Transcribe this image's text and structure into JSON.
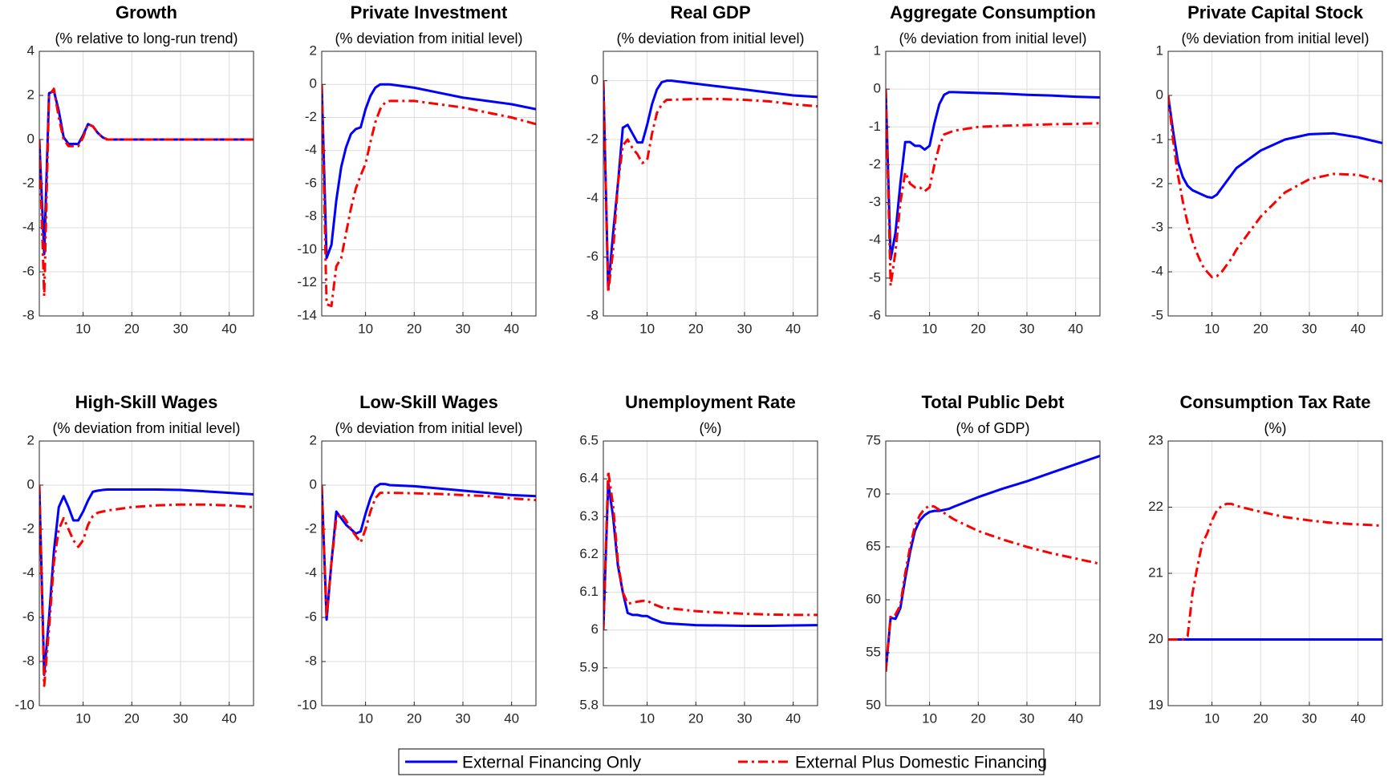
{
  "chart_data": [
    {
      "type": "line",
      "title": "Growth",
      "subtitle": "(% relative to long-run trend)",
      "x": [
        1,
        2,
        3,
        4,
        5,
        6,
        7,
        8,
        9,
        10,
        11,
        12,
        13,
        14,
        15,
        20,
        25,
        30,
        35,
        40,
        45
      ],
      "xlim": [
        1,
        45
      ],
      "xticks": [
        10,
        20,
        30,
        40
      ],
      "ylim": [
        -8,
        4
      ],
      "yticks": [
        -8,
        -6,
        -4,
        -2,
        0,
        2,
        4
      ],
      "grid": true,
      "series": [
        {
          "name": "External Financing Only",
          "color": "#0000ff",
          "linestyle": "solid",
          "values": [
            0,
            -5.2,
            2.1,
            2.2,
            1.3,
            0.1,
            -0.2,
            -0.2,
            -0.2,
            0.2,
            0.7,
            0.6,
            0.3,
            0.1,
            0,
            0,
            0,
            0,
            0,
            0,
            0
          ]
        },
        {
          "name": "External Plus Domestic Financing",
          "color": "#ff0000",
          "linestyle": "dashdot",
          "values": [
            0,
            -7.1,
            2.0,
            2.3,
            1.0,
            0,
            -0.3,
            -0.3,
            -0.3,
            0.1,
            0.7,
            0.6,
            0.3,
            0.1,
            0,
            0,
            0,
            0,
            0,
            0,
            0
          ]
        }
      ]
    },
    {
      "type": "line",
      "title": "Private Investment",
      "subtitle": "(% deviation from initial level)",
      "x": [
        1,
        2,
        3,
        4,
        5,
        6,
        7,
        8,
        9,
        10,
        11,
        12,
        13,
        14,
        15,
        20,
        25,
        30,
        35,
        40,
        45
      ],
      "xlim": [
        1,
        45
      ],
      "xticks": [
        10,
        20,
        30,
        40
      ],
      "ylim": [
        -14,
        2
      ],
      "yticks": [
        -14,
        -12,
        -10,
        -8,
        -6,
        -4,
        -2,
        0,
        2
      ],
      "grid": true,
      "series": [
        {
          "name": "External Financing Only",
          "color": "#0000ff",
          "linestyle": "solid",
          "values": [
            0,
            -10.5,
            -9.7,
            -7,
            -5,
            -3.8,
            -3.0,
            -2.7,
            -2.6,
            -1.5,
            -0.7,
            -0.2,
            0,
            0,
            0,
            -0.2,
            -0.5,
            -0.8,
            -1.0,
            -1.2,
            -1.5
          ]
        },
        {
          "name": "External Plus Domestic Financing",
          "color": "#ff0000",
          "linestyle": "dashdot",
          "values": [
            0,
            -13.3,
            -13.4,
            -11,
            -10.5,
            -9,
            -7.5,
            -6.3,
            -5.5,
            -4.8,
            -3.5,
            -2.3,
            -1.5,
            -1.1,
            -1.0,
            -1.0,
            -1.2,
            -1.4,
            -1.7,
            -2.0,
            -2.4
          ]
        }
      ]
    },
    {
      "type": "line",
      "title": "Real GDP",
      "subtitle": "(% deviation from initial level)",
      "x": [
        1,
        2,
        3,
        4,
        5,
        6,
        7,
        8,
        9,
        10,
        11,
        12,
        13,
        14,
        15,
        20,
        25,
        30,
        35,
        40,
        45
      ],
      "xlim": [
        1,
        45
      ],
      "xticks": [
        10,
        20,
        30,
        40
      ],
      "ylim": [
        -8,
        1
      ],
      "yticks": [
        -8,
        -6,
        -4,
        -2,
        0
      ],
      "grid": true,
      "series": [
        {
          "name": "External Financing Only",
          "color": "#0000ff",
          "linestyle": "solid",
          "values": [
            0,
            -7.1,
            -5.2,
            -3.5,
            -1.6,
            -1.5,
            -1.8,
            -2.1,
            -2.1,
            -1.5,
            -0.8,
            -0.3,
            -0.05,
            0,
            0,
            -0.1,
            -0.2,
            -0.3,
            -0.4,
            -0.5,
            -0.55
          ]
        },
        {
          "name": "External Plus Domestic Financing",
          "color": "#ff0000",
          "linestyle": "dashdot",
          "values": [
            0,
            -7.2,
            -5.8,
            -3.5,
            -2.2,
            -2.0,
            -2.3,
            -2.5,
            -2.8,
            -2.7,
            -1.8,
            -1.1,
            -0.8,
            -0.65,
            -0.65,
            -0.62,
            -0.62,
            -0.65,
            -0.7,
            -0.8,
            -0.87
          ]
        }
      ]
    },
    {
      "type": "line",
      "title": "Aggregate Consumption",
      "subtitle": "(% deviation from initial level)",
      "x": [
        1,
        2,
        3,
        4,
        5,
        6,
        7,
        8,
        9,
        10,
        11,
        12,
        13,
        14,
        15,
        20,
        25,
        30,
        35,
        40,
        45
      ],
      "xlim": [
        1,
        45
      ],
      "xticks": [
        10,
        20,
        30,
        40
      ],
      "ylim": [
        -6,
        1
      ],
      "yticks": [
        -6,
        -5,
        -4,
        -3,
        -2,
        -1,
        0,
        1
      ],
      "grid": true,
      "series": [
        {
          "name": "External Financing Only",
          "color": "#0000ff",
          "linestyle": "solid",
          "values": [
            0,
            -4.5,
            -3.8,
            -2.5,
            -1.4,
            -1.4,
            -1.5,
            -1.5,
            -1.6,
            -1.5,
            -0.9,
            -0.4,
            -0.15,
            -0.08,
            -0.08,
            -0.1,
            -0.12,
            -0.15,
            -0.17,
            -0.2,
            -0.22
          ]
        },
        {
          "name": "External Plus Domestic Financing",
          "color": "#ff0000",
          "linestyle": "dashdot",
          "values": [
            0,
            -5.2,
            -4.3,
            -3,
            -2.2,
            -2.5,
            -2.6,
            -2.6,
            -2.7,
            -2.6,
            -2.0,
            -1.5,
            -1.2,
            -1.15,
            -1.1,
            -1.0,
            -0.97,
            -0.95,
            -0.93,
            -0.92,
            -0.9
          ]
        }
      ]
    },
    {
      "type": "line",
      "title": "Private Capital Stock",
      "subtitle": "(% deviation from initial level)",
      "x": [
        1,
        2,
        3,
        4,
        5,
        6,
        7,
        8,
        9,
        10,
        11,
        12,
        13,
        14,
        15,
        20,
        25,
        30,
        35,
        40,
        45
      ],
      "xlim": [
        1,
        45
      ],
      "xticks": [
        10,
        20,
        30,
        40
      ],
      "ylim": [
        -5,
        1
      ],
      "yticks": [
        -5,
        -4,
        -3,
        -2,
        -1,
        0,
        1
      ],
      "grid": true,
      "series": [
        {
          "name": "External Financing Only",
          "color": "#0000ff",
          "linestyle": "solid",
          "values": [
            0,
            -0.8,
            -1.5,
            -1.85,
            -2.05,
            -2.15,
            -2.2,
            -2.25,
            -2.3,
            -2.32,
            -2.25,
            -2.1,
            -1.95,
            -1.8,
            -1.65,
            -1.25,
            -1.0,
            -0.88,
            -0.86,
            -0.95,
            -1.08
          ]
        },
        {
          "name": "External Plus Domestic Financing",
          "color": "#ff0000",
          "linestyle": "dashdot",
          "values": [
            0,
            -1.0,
            -1.8,
            -2.4,
            -2.9,
            -3.3,
            -3.6,
            -3.85,
            -4.0,
            -4.12,
            -4.1,
            -4.0,
            -3.85,
            -3.7,
            -3.5,
            -2.75,
            -2.2,
            -1.9,
            -1.78,
            -1.8,
            -1.95
          ]
        }
      ]
    },
    {
      "type": "line",
      "title": "High-Skill Wages",
      "subtitle": "(% deviation from initial level)",
      "x": [
        1,
        2,
        3,
        4,
        5,
        6,
        7,
        8,
        9,
        10,
        11,
        12,
        13,
        14,
        15,
        20,
        25,
        30,
        35,
        40,
        45
      ],
      "xlim": [
        1,
        45
      ],
      "xticks": [
        10,
        20,
        30,
        40
      ],
      "ylim": [
        -10,
        2
      ],
      "yticks": [
        -10,
        -8,
        -6,
        -4,
        -2,
        0,
        2
      ],
      "grid": true,
      "series": [
        {
          "name": "External Financing Only",
          "color": "#0000ff",
          "linestyle": "solid",
          "values": [
            0,
            -8.6,
            -6,
            -3,
            -1,
            -0.5,
            -1,
            -1.6,
            -1.6,
            -1.2,
            -0.7,
            -0.3,
            -0.25,
            -0.22,
            -0.2,
            -0.2,
            -0.2,
            -0.22,
            -0.28,
            -0.35,
            -0.42
          ]
        },
        {
          "name": "External Plus Domestic Financing",
          "color": "#ff0000",
          "linestyle": "dashdot",
          "values": [
            0,
            -9.1,
            -6.5,
            -3.5,
            -2,
            -1.5,
            -2,
            -2.5,
            -2.8,
            -2.5,
            -1.8,
            -1.4,
            -1.25,
            -1.2,
            -1.15,
            -1.0,
            -0.92,
            -0.88,
            -0.88,
            -0.92,
            -1.0
          ]
        }
      ]
    },
    {
      "type": "line",
      "title": "Low-Skill Wages",
      "subtitle": "(% deviation from initial level)",
      "x": [
        1,
        2,
        3,
        4,
        5,
        6,
        7,
        8,
        9,
        10,
        11,
        12,
        13,
        14,
        15,
        20,
        25,
        30,
        35,
        40,
        45
      ],
      "xlim": [
        1,
        45
      ],
      "xticks": [
        10,
        20,
        30,
        40
      ],
      "ylim": [
        -10,
        2
      ],
      "yticks": [
        -10,
        -8,
        -6,
        -4,
        -2,
        0,
        2
      ],
      "grid": true,
      "series": [
        {
          "name": "External Financing Only",
          "color": "#0000ff",
          "linestyle": "solid",
          "values": [
            0,
            -6.1,
            -3.5,
            -1.2,
            -1.5,
            -1.8,
            -2.0,
            -2.2,
            -2.1,
            -1.3,
            -0.6,
            -0.1,
            0.05,
            0.05,
            0,
            -0.05,
            -0.15,
            -0.25,
            -0.35,
            -0.45,
            -0.5
          ]
        },
        {
          "name": "External Plus Domestic Financing",
          "color": "#ff0000",
          "linestyle": "dashdot",
          "values": [
            0,
            -6,
            -3.5,
            -1.5,
            -1.3,
            -1.6,
            -2,
            -2.3,
            -2.6,
            -2.0,
            -1.2,
            -0.6,
            -0.35,
            -0.35,
            -0.35,
            -0.37,
            -0.4,
            -0.45,
            -0.5,
            -0.6,
            -0.68
          ]
        }
      ]
    },
    {
      "type": "line",
      "title": "Unemployment Rate",
      "subtitle": "(%)",
      "x": [
        1,
        2,
        3,
        4,
        5,
        6,
        7,
        8,
        9,
        10,
        11,
        12,
        13,
        14,
        15,
        20,
        25,
        30,
        35,
        40,
        45
      ],
      "xlim": [
        1,
        45
      ],
      "xticks": [
        10,
        20,
        30,
        40
      ],
      "ylim": [
        5.8,
        6.5
      ],
      "yticks": [
        5.8,
        5.9,
        6,
        6.1,
        6.2,
        6.3,
        6.4,
        6.5
      ],
      "grid": true,
      "series": [
        {
          "name": "External Financing Only",
          "color": "#0000ff",
          "linestyle": "solid",
          "values": [
            6.0,
            6.39,
            6.3,
            6.17,
            6.1,
            6.045,
            6.04,
            6.04,
            6.037,
            6.037,
            6.03,
            6.025,
            6.02,
            6.018,
            6.017,
            6.013,
            6.012,
            6.011,
            6.011,
            6.012,
            6.013
          ]
        },
        {
          "name": "External Plus Domestic Financing",
          "color": "#ff0000",
          "linestyle": "dashdot",
          "values": [
            6.0,
            6.42,
            6.33,
            6.18,
            6.1,
            6.07,
            6.072,
            6.075,
            6.077,
            6.078,
            6.07,
            6.065,
            6.06,
            6.058,
            6.057,
            6.05,
            6.046,
            6.043,
            6.041,
            6.04,
            6.04
          ]
        }
      ]
    },
    {
      "type": "line",
      "title": "Total Public Debt",
      "subtitle": "(% of GDP)",
      "x": [
        1,
        2,
        3,
        4,
        5,
        6,
        7,
        8,
        9,
        10,
        11,
        12,
        13,
        14,
        15,
        20,
        25,
        30,
        35,
        40,
        45
      ],
      "xlim": [
        1,
        45
      ],
      "xticks": [
        10,
        20,
        30,
        40
      ],
      "ylim": [
        50,
        75
      ],
      "yticks": [
        50,
        55,
        60,
        65,
        70,
        75
      ],
      "grid": true,
      "series": [
        {
          "name": "External Financing Only",
          "color": "#0000ff",
          "linestyle": "solid",
          "values": [
            53.2,
            58.3,
            58.2,
            59.2,
            62,
            64.5,
            66.5,
            67.5,
            68,
            68.3,
            68.4,
            68.4,
            68.5,
            68.6,
            68.8,
            69.7,
            70.5,
            71.2,
            72,
            72.8,
            73.6
          ]
        },
        {
          "name": "External Plus Domestic Financing",
          "color": "#ff0000",
          "linestyle": "dashdot",
          "values": [
            53.2,
            58.5,
            58.6,
            59.5,
            62.5,
            65.0,
            67,
            68,
            68.6,
            68.9,
            68.8,
            68.5,
            68.2,
            67.9,
            67.6,
            66.5,
            65.7,
            65.0,
            64.4,
            63.9,
            63.4
          ]
        }
      ]
    },
    {
      "type": "line",
      "title": "Consumption Tax Rate",
      "subtitle": "(%)",
      "x": [
        1,
        2,
        3,
        4,
        5,
        6,
        7,
        8,
        9,
        10,
        11,
        12,
        13,
        14,
        15,
        20,
        25,
        30,
        35,
        40,
        45
      ],
      "xlim": [
        1,
        45
      ],
      "xticks": [
        10,
        20,
        30,
        40
      ],
      "ylim": [
        19,
        23
      ],
      "yticks": [
        19,
        20,
        21,
        22,
        23
      ],
      "grid": true,
      "series": [
        {
          "name": "External Financing Only",
          "color": "#0000ff",
          "linestyle": "solid",
          "values": [
            20,
            20,
            20,
            20,
            20,
            20,
            20,
            20,
            20,
            20,
            20,
            20,
            20,
            20,
            20,
            20,
            20,
            20,
            20,
            20,
            20
          ]
        },
        {
          "name": "External Plus Domestic Financing",
          "color": "#ff0000",
          "linestyle": "dashdot",
          "values": [
            20,
            20,
            20,
            20,
            20.05,
            20.7,
            21.1,
            21.45,
            21.6,
            21.8,
            21.95,
            22.02,
            22.05,
            22.05,
            22.02,
            21.93,
            21.85,
            21.8,
            21.76,
            21.74,
            21.72
          ]
        }
      ]
    }
  ]
}
